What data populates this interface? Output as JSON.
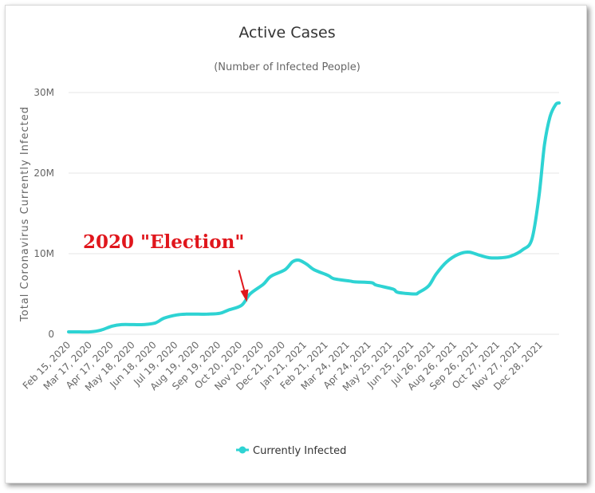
{
  "chart_data": {
    "type": "line",
    "title": "Active Cases",
    "subtitle": "(Number of Infected People)",
    "ylabel": "Total Coronavirus Currently Infected",
    "xlabel": "",
    "ylim": [
      0,
      30000000
    ],
    "yticks": [
      0,
      10000000,
      20000000,
      30000000
    ],
    "ytick_labels": [
      "0",
      "10M",
      "20M",
      "30M"
    ],
    "xtick_labels": [
      "Feb 15, 2020",
      "Mar 17, 2020",
      "Apr 17, 2020",
      "May 18, 2020",
      "Jun 18, 2020",
      "Jul 19, 2020",
      "Aug 19, 2020",
      "Sep 19, 2020",
      "Oct 20, 2020",
      "Nov 20, 2020",
      "Dec 21, 2020",
      "Jan 21, 2021",
      "Feb 21, 2021",
      "Mar 24, 2021",
      "Apr 24, 2021",
      "May 25, 2021",
      "Jun 25, 2021",
      "Jul 26, 2021",
      "Aug 26, 2021",
      "Sep 26, 2021",
      "Oct 27, 2021",
      "Nov 27, 2021",
      "Dec 28, 2021"
    ],
    "grid": true,
    "legend_position": "bottom-center",
    "series": [
      {
        "name": "Currently Infected",
        "color": "#2ed3d3",
        "x": [
          "2020-02-15",
          "2020-03-01",
          "2020-03-17",
          "2020-04-01",
          "2020-04-17",
          "2020-05-01",
          "2020-05-18",
          "2020-06-01",
          "2020-06-18",
          "2020-07-01",
          "2020-07-19",
          "2020-08-01",
          "2020-08-19",
          "2020-09-01",
          "2020-09-19",
          "2020-10-01",
          "2020-10-20",
          "2020-11-01",
          "2020-11-20",
          "2020-12-01",
          "2020-12-21",
          "2021-01-01",
          "2021-01-10",
          "2021-01-21",
          "2021-02-01",
          "2021-02-21",
          "2021-03-01",
          "2021-03-24",
          "2021-04-01",
          "2021-04-24",
          "2021-05-01",
          "2021-05-25",
          "2021-06-01",
          "2021-06-25",
          "2021-07-01",
          "2021-07-15",
          "2021-07-26",
          "2021-08-10",
          "2021-08-26",
          "2021-09-10",
          "2021-09-26",
          "2021-10-10",
          "2021-10-27",
          "2021-11-10",
          "2021-11-27",
          "2021-12-10",
          "2021-12-20",
          "2021-12-28",
          "2022-01-05",
          "2022-01-13",
          "2022-01-18"
        ],
        "values": [
          300000,
          300000,
          300000,
          500000,
          1000000,
          1200000,
          1200000,
          1200000,
          1400000,
          2000000,
          2400000,
          2500000,
          2500000,
          2500000,
          2600000,
          3000000,
          3600000,
          5000000,
          6200000,
          7200000,
          8000000,
          9000000,
          9200000,
          8700000,
          8000000,
          7300000,
          6900000,
          6600000,
          6500000,
          6400000,
          6100000,
          5600000,
          5200000,
          5000000,
          5200000,
          6000000,
          7500000,
          9000000,
          9900000,
          10200000,
          9800000,
          9500000,
          9500000,
          9700000,
          10500000,
          11800000,
          17000000,
          23500000,
          27000000,
          28500000,
          28700000
        ]
      }
    ],
    "annotations": [
      {
        "text": "2020 \"Election\"",
        "color": "#e0161c",
        "points_to": "2020-11-01"
      }
    ]
  }
}
